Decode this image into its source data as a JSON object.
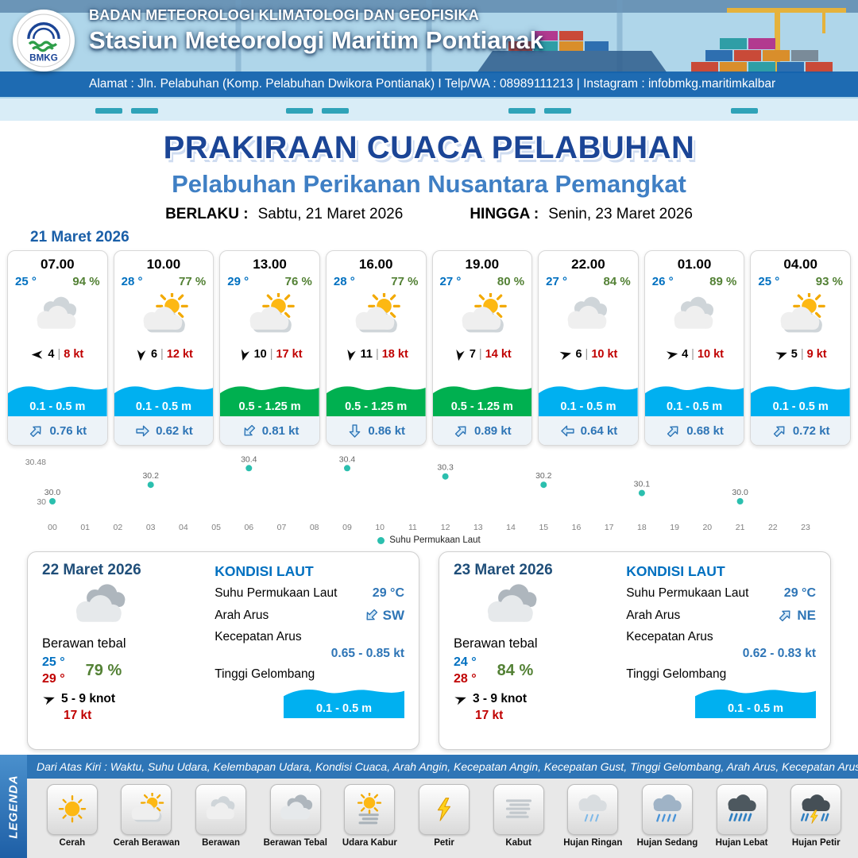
{
  "header": {
    "logo_label": "BMKG",
    "agency": "BADAN METEOROLOGI KLIMATOLOGI DAN GEOFISIKA",
    "station": "Stasiun Meteorologi Maritim Pontianak",
    "address": "Alamat : Jln. Pelabuhan (Komp. Pelabuhan Dwikora Pontianak) I Telp/WA : 08989111213 | Instagram : infobmkg.maritimkalbar"
  },
  "title": {
    "main": "PRAKIRAAN CUACA PELABUHAN",
    "subtitle": "Pelabuhan Perikanan Nusantara Pemangkat",
    "valid_label": "BERLAKU :",
    "valid_value": "Sabtu, 21 Maret 2026",
    "until_label": "HINGGA :",
    "until_value": "Senin, 23 Maret 2026"
  },
  "forecast_day_label": "21 Maret 2026",
  "colors": {
    "wave_blue": "#00B0F0",
    "wave_green": "#00B050",
    "temp_blue": "#0070C0",
    "humidity_green": "#538135",
    "gust_red": "#C00000",
    "accent_blue": "#2E75B6"
  },
  "forecast_cards": [
    {
      "time": "07.00",
      "temp": "25 °",
      "humidity": "94 %",
      "icon": "berawan",
      "wind_dir_deg": 180,
      "wind_speed": "4",
      "wind_gust": "8 kt",
      "wave": "0.1 - 0.5 m",
      "wave_color": "blue",
      "current_dir_deg": -45,
      "current_speed": "0.76 kt"
    },
    {
      "time": "10.00",
      "temp": "28 °",
      "humidity": "77 %",
      "icon": "cerah-berawan",
      "wind_dir_deg": 95,
      "wind_speed": "6",
      "wind_gust": "12 kt",
      "wave": "0.1 - 0.5 m",
      "wave_color": "blue",
      "current_dir_deg": 0,
      "current_speed": "0.62 kt"
    },
    {
      "time": "13.00",
      "temp": "29 °",
      "humidity": "76 %",
      "icon": "cerah-berawan",
      "wind_dir_deg": 105,
      "wind_speed": "10",
      "wind_gust": "17 kt",
      "wave": "0.5 - 1.25 m",
      "wave_color": "green",
      "current_dir_deg": 135,
      "current_speed": "0.81 kt"
    },
    {
      "time": "16.00",
      "temp": "28 °",
      "humidity": "77 %",
      "icon": "cerah-berawan",
      "wind_dir_deg": 100,
      "wind_speed": "11",
      "wind_gust": "18 kt",
      "wave": "0.5 - 1.25 m",
      "wave_color": "green",
      "current_dir_deg": 90,
      "current_speed": "0.86 kt"
    },
    {
      "time": "19.00",
      "temp": "27 °",
      "humidity": "80 %",
      "icon": "cerah-berawan",
      "wind_dir_deg": 100,
      "wind_speed": "7",
      "wind_gust": "14 kt",
      "wave": "0.5 - 1.25 m",
      "wave_color": "green",
      "current_dir_deg": -45,
      "current_speed": "0.89 kt"
    },
    {
      "time": "22.00",
      "temp": "27 °",
      "humidity": "84 %",
      "icon": "berawan",
      "wind_dir_deg": -15,
      "wind_speed": "6",
      "wind_gust": "10 kt",
      "wave": "0.1 - 0.5 m",
      "wave_color": "blue",
      "current_dir_deg": 180,
      "current_speed": "0.64 kt"
    },
    {
      "time": "01.00",
      "temp": "26 °",
      "humidity": "89 %",
      "icon": "berawan",
      "wind_dir_deg": -10,
      "wind_speed": "4",
      "wind_gust": "10 kt",
      "wave": "0.1 - 0.5 m",
      "wave_color": "blue",
      "current_dir_deg": -45,
      "current_speed": "0.68 kt"
    },
    {
      "time": "04.00",
      "temp": "25 °",
      "humidity": "93 %",
      "icon": "cerah-berawan",
      "wind_dir_deg": -20,
      "wind_speed": "5",
      "wind_gust": "9 kt",
      "wave": "0.1 - 0.5 m",
      "wave_color": "blue",
      "current_dir_deg": -45,
      "current_speed": "0.72 kt"
    }
  ],
  "chart_data": {
    "type": "line",
    "title": "",
    "xlabel": "",
    "ylabel": "",
    "x_hours": [
      0,
      3,
      6,
      9,
      12,
      15,
      18,
      21
    ],
    "values": [
      30.0,
      30.2,
      30.4,
      30.4,
      30.3,
      30.2,
      30.1,
      30.0
    ],
    "point_labels": [
      "30.0",
      "30.2",
      "30.4",
      "30.4",
      "30.3",
      "30.2",
      "30.1",
      "30.0"
    ],
    "x_ticks": [
      "00",
      "01",
      "02",
      "03",
      "04",
      "05",
      "06",
      "07",
      "08",
      "09",
      "10",
      "11",
      "12",
      "13",
      "14",
      "15",
      "16",
      "17",
      "18",
      "19",
      "20",
      "21",
      "22",
      "23"
    ],
    "y_ticks": [
      {
        "value": 30.48,
        "label": "30.48"
      },
      {
        "value": 30,
        "label": "30"
      }
    ],
    "ylim": [
      30,
      30.48
    ],
    "grid": false,
    "legend": "Suhu Permukaan Laut",
    "legend_position": "bottom",
    "series_color": "#2BBFAE"
  },
  "day_cards": [
    {
      "date": "22 Maret 2026",
      "icon": "berawan-tebal",
      "condition": "Berawan tebal",
      "temp_min": "25 °",
      "temp_max": "29 °",
      "humidity": "79 %",
      "wind_dir_deg": -20,
      "wind_range": "5 - 9 knot",
      "wind_gust": "17 kt",
      "sea": {
        "title": "KONDISI LAUT",
        "sst_label": "Suhu Permukaan Laut",
        "sst_value": "29 °C",
        "current_dir_label": "Arah Arus",
        "current_dir": "SW",
        "current_dir_deg": 135,
        "current_speed_label": "Kecepatan Arus",
        "current_speed": "0.65 - 0.85 kt",
        "wave_label": "Tinggi Gelombang",
        "wave_value": "0.1 - 0.5 m"
      }
    },
    {
      "date": "23 Maret 2026",
      "icon": "berawan-tebal",
      "condition": "Berawan tebal",
      "temp_min": "24 °",
      "temp_max": "28 °",
      "humidity": "84 %",
      "wind_dir_deg": -20,
      "wind_range": "3 - 9 knot",
      "wind_gust": "17 kt",
      "sea": {
        "title": "KONDISI LAUT",
        "sst_label": "Suhu Permukaan Laut",
        "sst_value": "29 °C",
        "current_dir_label": "Arah Arus",
        "current_dir": "NE",
        "current_dir_deg": -45,
        "current_speed_label": "Kecepatan Arus",
        "current_speed": "0.62 - 0.83 kt",
        "wave_label": "Tinggi Gelombang",
        "wave_value": "0.1 - 0.5 m"
      }
    }
  ],
  "legend": {
    "title": "LEGENDA",
    "bar_text": "Dari Atas Kiri : Waktu, Suhu Udara, Kelembapan Udara, Kondisi Cuaca, Arah Angin, Kecepatan Angin, Kecepatan Gust, Tinggi Gelombang, Arah Arus, Kecepatan Arus",
    "items": [
      {
        "label": "Cerah",
        "icon": "cerah"
      },
      {
        "label": "Cerah Berawan",
        "icon": "cerah-berawan"
      },
      {
        "label": "Berawan",
        "icon": "berawan"
      },
      {
        "label": "Berawan Tebal",
        "icon": "berawan-tebal"
      },
      {
        "label": "Udara Kabur",
        "icon": "udara-kabur"
      },
      {
        "label": "Petir",
        "icon": "petir"
      },
      {
        "label": "Kabut",
        "icon": "kabut"
      },
      {
        "label": "Hujan Ringan",
        "icon": "hujan-ringan"
      },
      {
        "label": "Hujan Sedang",
        "icon": "hujan-sedang"
      },
      {
        "label": "Hujan Lebat",
        "icon": "hujan-lebat"
      },
      {
        "label": "Hujan Petir",
        "icon": "hujan-petir"
      }
    ]
  }
}
